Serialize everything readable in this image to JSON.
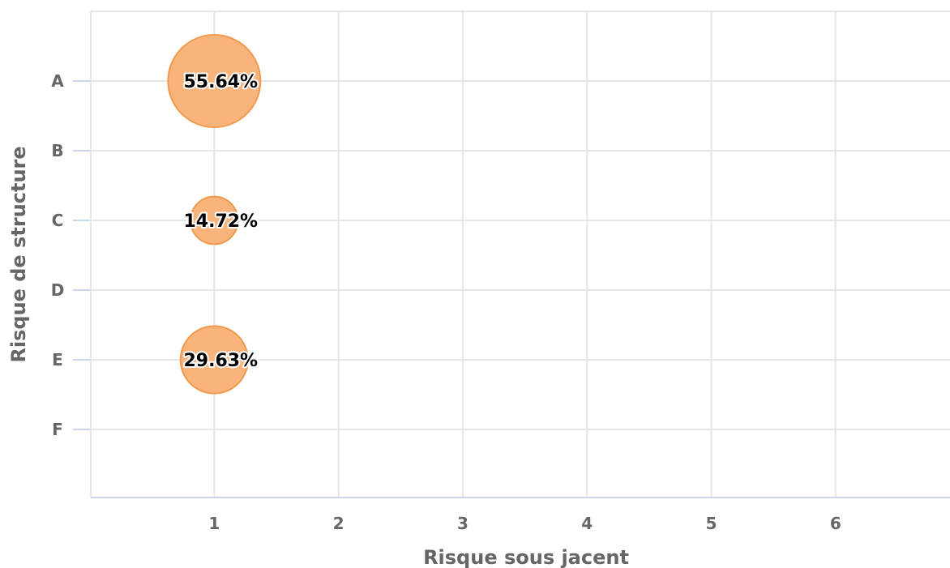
{
  "chart_data": {
    "type": "scatter",
    "subtype": "bubble",
    "xlabel": "Risque sous jacent",
    "ylabel": "Risque de structure",
    "x_ticks": [
      "1",
      "2",
      "3",
      "4",
      "5",
      "6"
    ],
    "y_categories": [
      "A",
      "B",
      "C",
      "D",
      "E",
      "F"
    ],
    "xlim": [
      0,
      7
    ],
    "grid": true,
    "legend": "none",
    "colors": {
      "bubble_fill": "#f9b47c",
      "bubble_stroke": "#ef9a4e",
      "grid": "#e6e6e6",
      "axis": "#ccd6eb",
      "label_text": "#000000"
    },
    "points": [
      {
        "x": 1,
        "y": "A",
        "value": 55.64,
        "label": "55.64%"
      },
      {
        "x": 1,
        "y": "C",
        "value": 14.72,
        "label": "14.72%"
      },
      {
        "x": 1,
        "y": "E",
        "value": 29.63,
        "label": "29.63%"
      }
    ]
  }
}
